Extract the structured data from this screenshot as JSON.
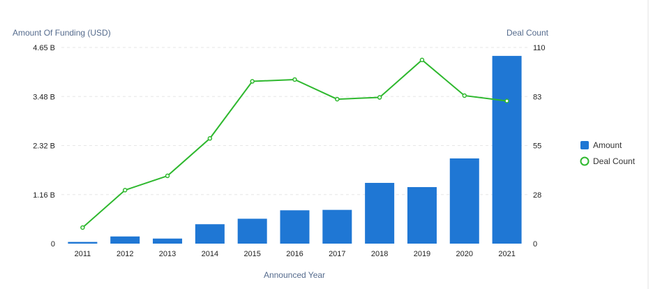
{
  "chart_data": {
    "type": "bar",
    "categories": [
      "2011",
      "2012",
      "2013",
      "2014",
      "2015",
      "2016",
      "2017",
      "2018",
      "2019",
      "2020",
      "2021"
    ],
    "series": [
      {
        "name": "Amount",
        "type": "bar",
        "axis": "left",
        "unit": "B USD",
        "values": [
          0.04,
          0.17,
          0.12,
          0.46,
          0.59,
          0.79,
          0.8,
          1.44,
          1.34,
          2.02,
          4.45
        ]
      },
      {
        "name": "Deal Count",
        "type": "line",
        "axis": "right",
        "values": [
          9,
          30,
          38,
          59,
          91,
          92,
          81,
          82,
          103,
          83,
          80
        ]
      }
    ],
    "xlabel": "Announced Year",
    "ylabel_left": "Amount Of Funding (USD)",
    "ylabel_right": "Deal Count",
    "ylim_left": [
      0,
      4.65
    ],
    "ylim_right": [
      0,
      110
    ],
    "yticks_left": [
      "0",
      "1.16 B",
      "2.32 B",
      "3.48 B",
      "4.65 B"
    ],
    "yticks_right": [
      "0",
      "28",
      "55",
      "83",
      "110"
    ],
    "legend_position": "right",
    "grid": true,
    "colors": {
      "bar": "#1f77d4",
      "line": "#2eb82e"
    }
  }
}
